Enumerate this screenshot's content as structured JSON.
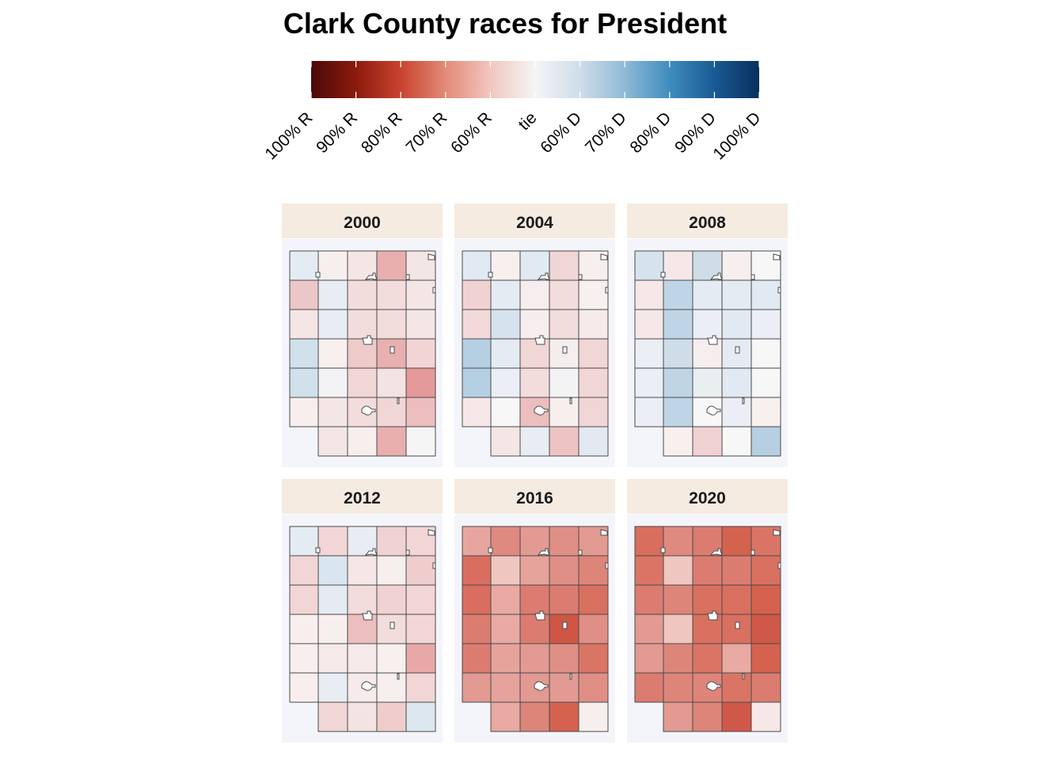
{
  "title": "Clark County races for President",
  "colorbar": {
    "stops": [
      "#4a0a0a",
      "#8c1a0c",
      "#c8442f",
      "#e28a78",
      "#f2c6bf",
      "#f5f5f5",
      "#cfdde9",
      "#8fbad6",
      "#3f8dbd",
      "#195a93",
      "#082f5e"
    ],
    "labels": [
      "100% R",
      "90% R",
      "80% R",
      "70% R",
      "60% R",
      "tie",
      "60% D",
      "70% D",
      "80% D",
      "90% D",
      "100% D"
    ]
  },
  "colors": {
    "strip_background": "#f6ebe1",
    "panel_background": "#f4f5fb",
    "township_border": "#4a4a4a"
  },
  "panels": [
    {
      "year": "2000",
      "rows": [
        [
          "#e4ebf3",
          "#f7efee",
          "#f5e6e6",
          "#e9afaf",
          "#f5e6e6"
        ],
        [
          "#ecc7c7",
          "#e8edf4",
          "#f2dcdc",
          "#f2dcdc",
          "#f5e6e6"
        ],
        [
          "#f5e6e6",
          "#e8edf4",
          "#f2dcdc",
          "#f2dcdc",
          "#f5e6e6"
        ],
        [
          "#d1e1ec",
          "#f7f0ef",
          "#eecaca",
          "#e8b0b0",
          "#f2d4d4"
        ],
        [
          "#d1e1ec",
          "#f3f3f5",
          "#f1d6d6",
          "#f3e3e3",
          "#e59999"
        ],
        [
          "#f8eeee",
          "#f5e6e6",
          "#f2dcdc",
          "#f1d6d6",
          "#ecbebe"
        ],
        [
          null,
          "#f5e6e6",
          "#f7efee",
          "#e9afaf",
          "#f5f5f5"
        ]
      ]
    },
    {
      "year": "2004",
      "rows": [
        [
          "#e1e9f2",
          "#f7f0ef",
          "#e1e9f2",
          "#f1d6d6",
          "#f7efee"
        ],
        [
          "#f1d2d2",
          "#e4ebf3",
          "#f6eeee",
          "#f2dcdc",
          "#f7f0ef"
        ],
        [
          "#f2dada",
          "#d6e3ee",
          "#f6eeee",
          "#f2dcdc",
          "#f6eaea"
        ],
        [
          "#b5cfe3",
          "#e4ebf3",
          "#f1d6d6",
          "#f6eeee",
          "#f1d6d6"
        ],
        [
          "#b5cfe3",
          "#ebeff5",
          "#f2dcdc",
          "#f3f3f5",
          "#f1d6d6"
        ],
        [
          "#f6e8e8",
          "#f7f7f7",
          "#ecbebe",
          "#f7efee",
          "#f1d6d6"
        ],
        [
          null,
          "#f5e6e6",
          "#e8edf4",
          "#eec3c3",
          "#e2e9f1"
        ]
      ]
    },
    {
      "year": "2008",
      "rows": [
        [
          "#d6e3ee",
          "#f6e8e8",
          "#cfdde9",
          "#f7efee",
          "#f7f7f7"
        ],
        [
          "#f6e8e8",
          "#bfd5e6",
          "#e4ebf3",
          "#e4ebf3",
          "#e1e9f2"
        ],
        [
          "#f6e8e8",
          "#bfd5e6",
          "#ebeff5",
          "#e1e9f2",
          "#ebeff5"
        ],
        [
          "#ebeff5",
          "#cfdde9",
          "#f6eeee",
          "#e4ebf3",
          "#f7f7f7"
        ],
        [
          "#ebeff5",
          "#bfd5e6",
          "#e9eff0",
          "#e1e9f2",
          "#f7f7f7"
        ],
        [
          "#ebeff5",
          "#bfd5e6",
          "#f7f7f7",
          "#ebeff5",
          "#f7f0ef"
        ],
        [
          null,
          "#f7f0ef",
          "#f1d2d2",
          "#f7f7f7",
          "#b7cfe2"
        ]
      ]
    },
    {
      "year": "2012",
      "rows": [
        [
          "#e4ebf3",
          "#f2d6d6",
          "#e8edf4",
          "#f1d2d2",
          "#f2d6d6"
        ],
        [
          "#f2d6d6",
          "#d9e5ef",
          "#f6e6e6",
          "#f7efee",
          "#f0cdcd"
        ],
        [
          "#f2d6d6",
          "#e4ebf3",
          "#f2dcdc",
          "#f1d2d2",
          "#f2d6d6"
        ],
        [
          "#f8eeee",
          "#f7efee",
          "#ecbebe",
          "#f2dcdc",
          "#f2d6d6"
        ],
        [
          "#f8eeee",
          "#f6eaea",
          "#f6eaea",
          "#f7f0ef",
          "#e9a8a8"
        ],
        [
          "#f8eeee",
          "#e8edf4",
          "#f6eaea",
          "#f7efee",
          "#f2d6d6"
        ],
        [
          null,
          "#f1d6d6",
          "#f3e3e3",
          "#f0cccc",
          "#dce7f0"
        ]
      ]
    },
    {
      "year": "2016",
      "rows": [
        [
          "#e8a5a0",
          "#df8a80",
          "#e29a92",
          "#e08f86",
          "#e29a92"
        ],
        [
          "#d96e60",
          "#f0c6c0",
          "#e6a39b",
          "#e08f86",
          "#de8579"
        ],
        [
          "#d96e60",
          "#e8aaa2",
          "#dc7c70",
          "#dc7c70",
          "#d9705f"
        ],
        [
          "#dc7c70",
          "#e8aaa2",
          "#dc7c70",
          "#cf5544",
          "#e08f86"
        ],
        [
          "#dc7c70",
          "#e6a39b",
          "#e29a92",
          "#e08f86",
          "#da7565"
        ],
        [
          "#e29a92",
          "#e6a39b",
          "#e29a92",
          "#e29a92",
          "#e08f86"
        ],
        [
          null,
          "#e8aaa2",
          "#de8579",
          "#d4624f",
          "#f7eeee"
        ]
      ]
    },
    {
      "year": "2020",
      "rows": [
        [
          "#d86e5e",
          "#df8a80",
          "#dc7c70",
          "#d4624f",
          "#da7565"
        ],
        [
          "#da7565",
          "#f0c6c0",
          "#dc7c70",
          "#dc7c70",
          "#d9705f"
        ],
        [
          "#dc7c70",
          "#de8579",
          "#d9705f",
          "#d9705f",
          "#d4624f"
        ],
        [
          "#e29a92",
          "#f0c6c0",
          "#d9705f",
          "#d9705f",
          "#d05848"
        ],
        [
          "#e29a92",
          "#de8579",
          "#da7565",
          "#e8aaa2",
          "#d4624f"
        ],
        [
          "#dc7c70",
          "#de8579",
          "#de8579",
          "#da7565",
          "#dc7c70"
        ],
        [
          null,
          "#e29a92",
          "#de8579",
          "#d05848",
          "#f7e8e8"
        ]
      ]
    }
  ]
}
